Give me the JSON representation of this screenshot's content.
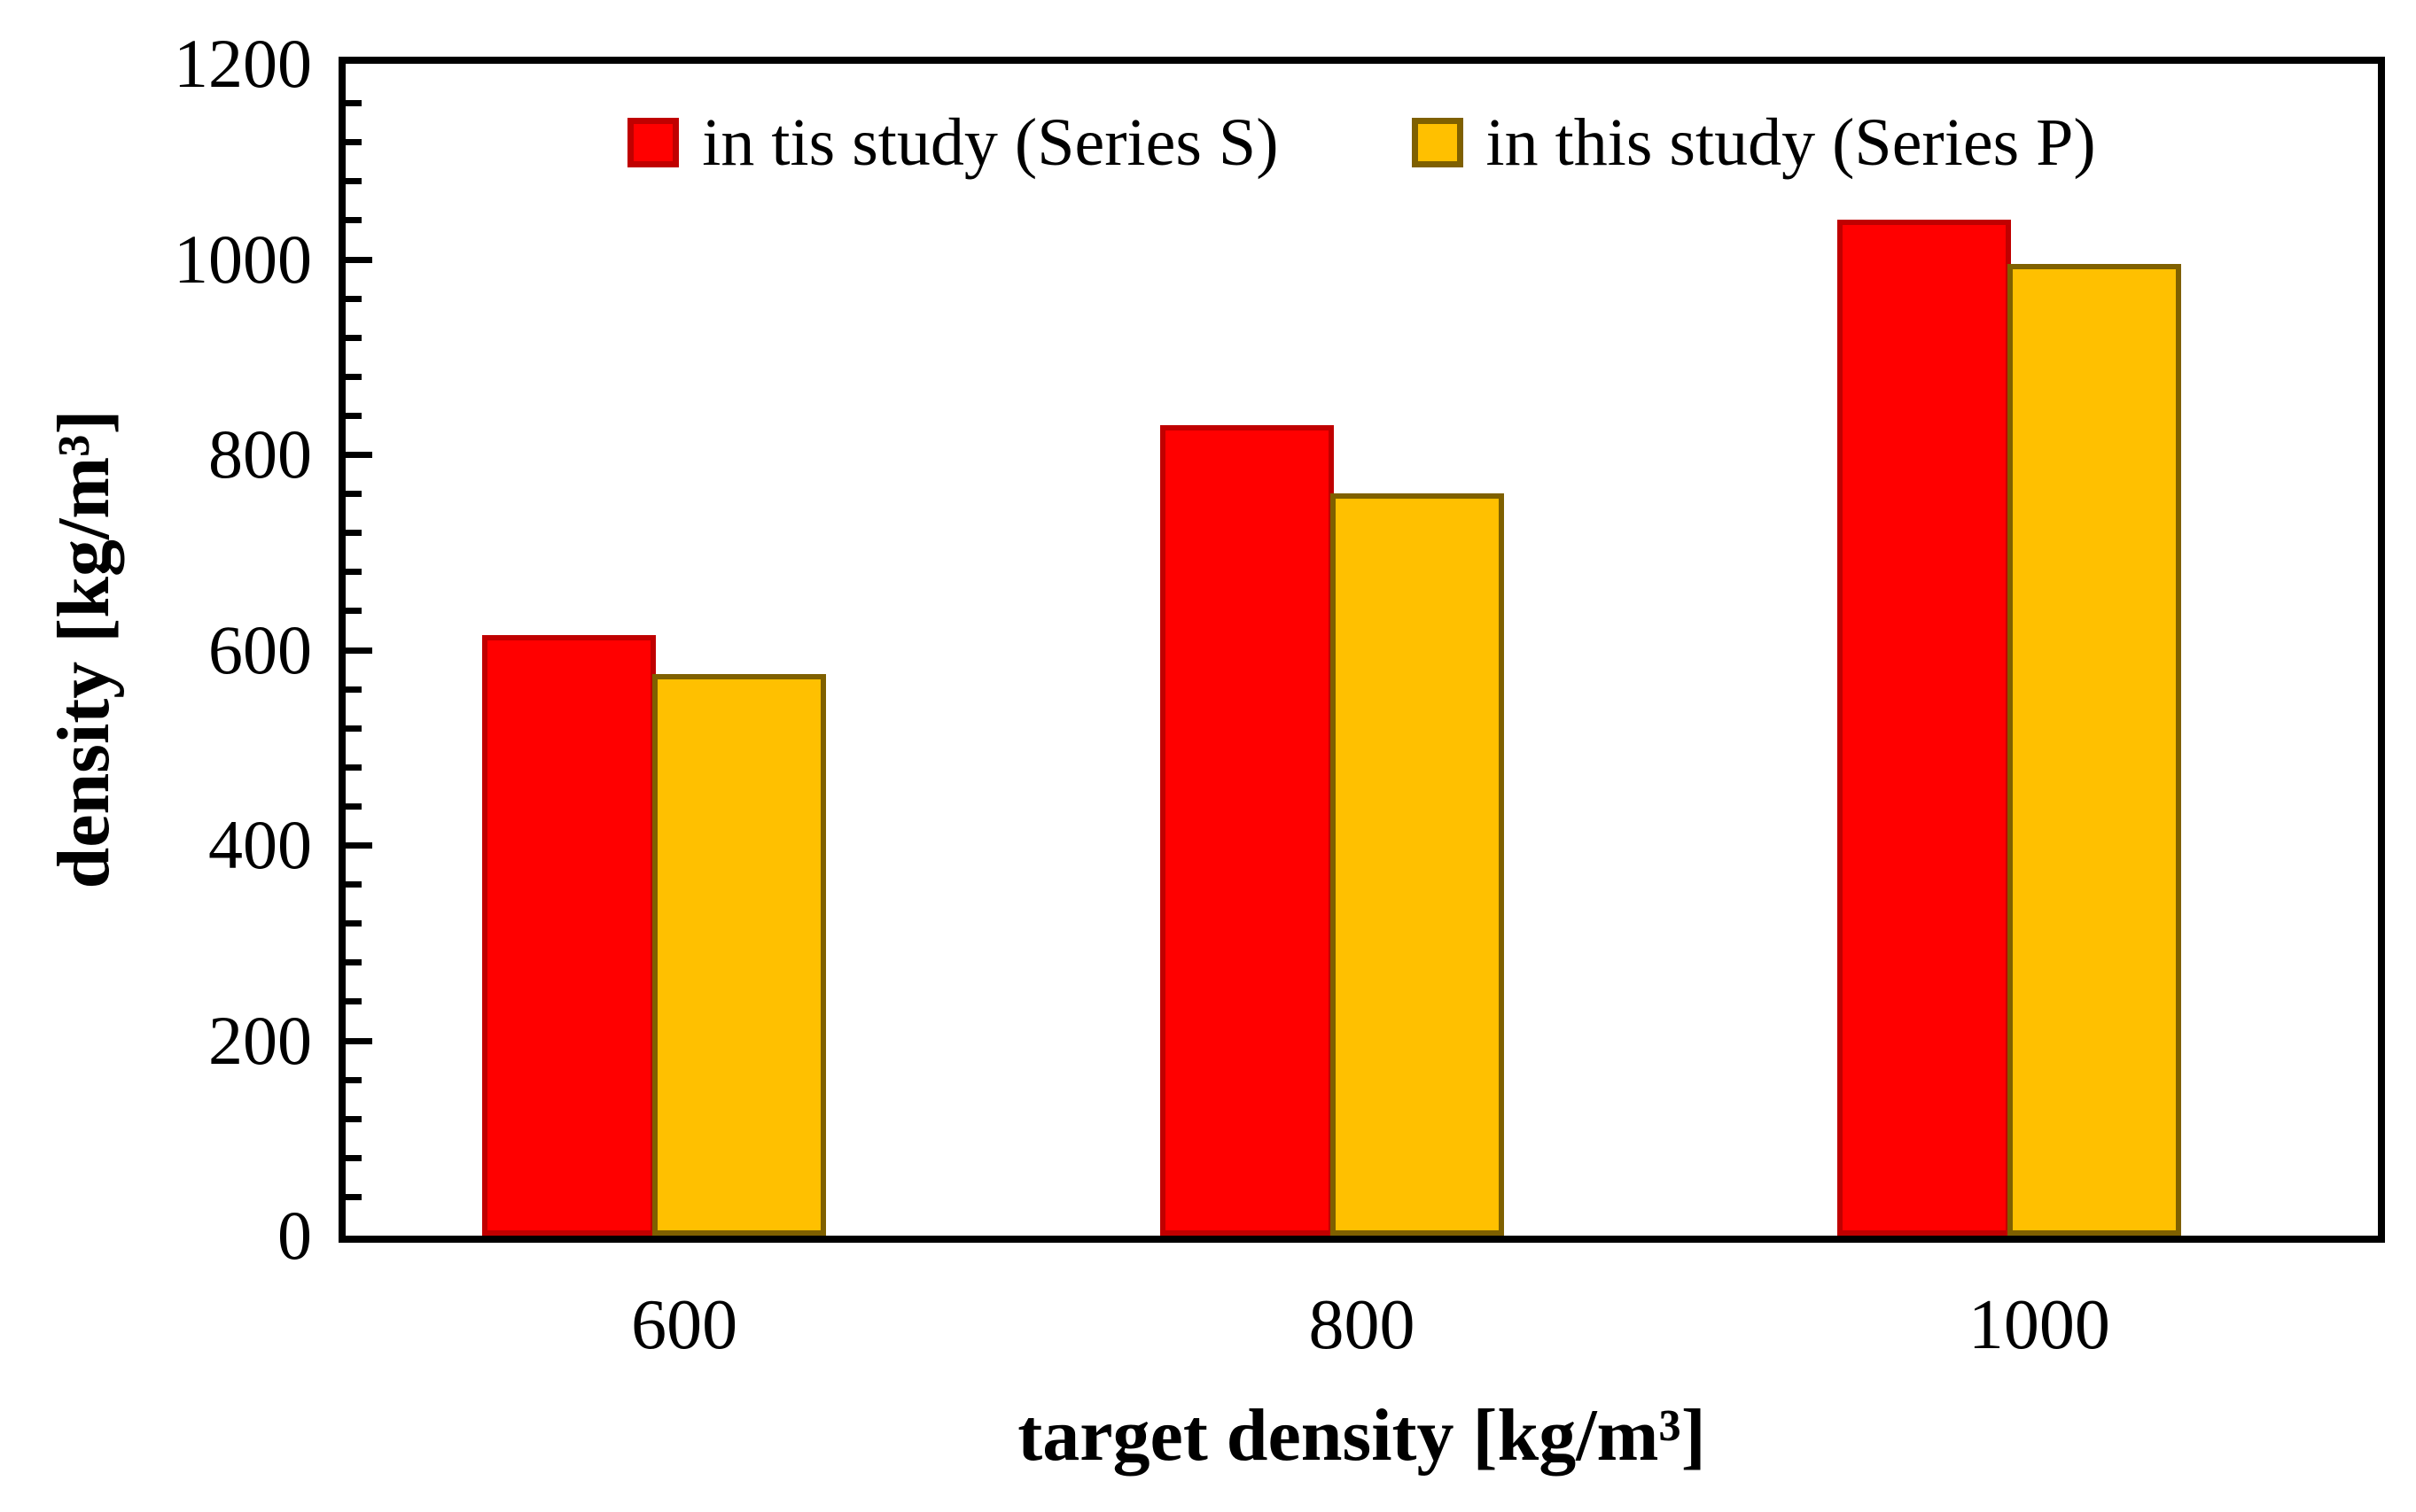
{
  "chart_data": {
    "type": "bar",
    "title": "",
    "categories": [
      "600",
      "800",
      "1000"
    ],
    "series": [
      {
        "name": "in tis study (Series S)",
        "color": "#FF0000",
        "border_color": "#C00000",
        "values": [
          615,
          830,
          1040
        ]
      },
      {
        "name": "in this study (Series P)",
        "color": "#FFC000",
        "border_color": "#7F6000",
        "values": [
          575,
          760,
          995
        ]
      }
    ],
    "xlabel": "target density [kg/m³]",
    "ylabel": "density [kg/m³]",
    "ylim": [
      0,
      1200
    ],
    "yticks": [
      0,
      200,
      400,
      600,
      800,
      1000,
      1200
    ],
    "y_minor_unit": 40,
    "grid": false,
    "legend_position": "top-center-inside",
    "axis_color": "#000000",
    "background_color": "#FFFFFF"
  }
}
